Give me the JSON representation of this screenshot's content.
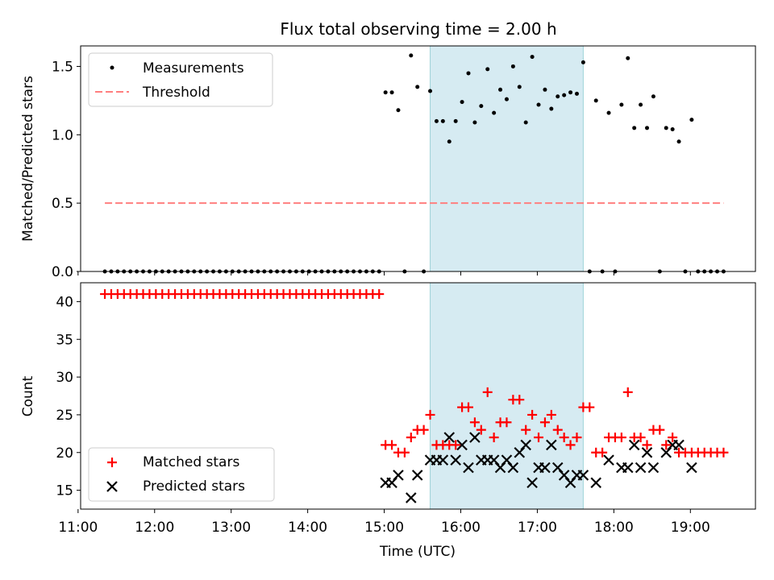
{
  "colors": {
    "measurement": "#000000",
    "threshold": "#ff7f7f",
    "matched": "#ff0000",
    "predicted": "#000000",
    "span": "#add8e6"
  },
  "chart_data": [
    {
      "type": "scatter",
      "title": "Flux total observing time = 2.00 h",
      "xlabel": "",
      "ylabel": "Matched/Predicted stars",
      "xlim": [
        "11:02",
        "19:51"
      ],
      "ylim": [
        0,
        1.65
      ],
      "yticks": [
        "0.0",
        "0.5",
        "1.0",
        "1.5"
      ],
      "highlight_span": [
        "15:36",
        "17:36"
      ],
      "legend": {
        "location": "upper left",
        "entries": [
          "Measurements",
          "Threshold"
        ]
      },
      "series": [
        {
          "name": "Measurements",
          "marker": "dot",
          "points": [
            [
              "11:21",
              0
            ],
            [
              "11:26",
              0
            ],
            [
              "11:31",
              0
            ],
            [
              "11:36",
              0
            ],
            [
              "11:41",
              0
            ],
            [
              "11:46",
              0
            ],
            [
              "11:51",
              0
            ],
            [
              "11:56",
              0
            ],
            [
              "12:01",
              0
            ],
            [
              "12:06",
              0
            ],
            [
              "12:11",
              0
            ],
            [
              "12:16",
              0
            ],
            [
              "12:21",
              0
            ],
            [
              "12:26",
              0
            ],
            [
              "12:31",
              0
            ],
            [
              "12:36",
              0
            ],
            [
              "12:41",
              0
            ],
            [
              "12:46",
              0
            ],
            [
              "12:51",
              0
            ],
            [
              "12:56",
              0
            ],
            [
              "13:01",
              0
            ],
            [
              "13:06",
              0
            ],
            [
              "13:11",
              0
            ],
            [
              "13:16",
              0
            ],
            [
              "13:21",
              0
            ],
            [
              "13:26",
              0
            ],
            [
              "13:31",
              0
            ],
            [
              "13:36",
              0
            ],
            [
              "13:41",
              0
            ],
            [
              "13:46",
              0
            ],
            [
              "13:51",
              0
            ],
            [
              "13:56",
              0
            ],
            [
              "14:01",
              0
            ],
            [
              "14:06",
              0
            ],
            [
              "14:11",
              0
            ],
            [
              "14:16",
              0
            ],
            [
              "14:21",
              0
            ],
            [
              "14:26",
              0
            ],
            [
              "14:31",
              0
            ],
            [
              "14:36",
              0
            ],
            [
              "14:41",
              0
            ],
            [
              "14:46",
              0
            ],
            [
              "14:51",
              0
            ],
            [
              "14:56",
              0
            ],
            [
              "15:01",
              1.31
            ],
            [
              "15:06",
              1.31
            ],
            [
              "15:11",
              1.18
            ],
            [
              "15:16",
              0
            ],
            [
              "15:21",
              1.58
            ],
            [
              "15:26",
              1.35
            ],
            [
              "15:31",
              0
            ],
            [
              "15:36",
              1.32
            ],
            [
              "15:41",
              1.1
            ],
            [
              "15:46",
              1.1
            ],
            [
              "15:51",
              0.95
            ],
            [
              "15:56",
              1.1
            ],
            [
              "16:01",
              1.24
            ],
            [
              "16:06",
              1.45
            ],
            [
              "16:11",
              1.09
            ],
            [
              "16:16",
              1.21
            ],
            [
              "16:21",
              1.48
            ],
            [
              "16:26",
              1.16
            ],
            [
              "16:31",
              1.33
            ],
            [
              "16:36",
              1.26
            ],
            [
              "16:41",
              1.5
            ],
            [
              "16:46",
              1.35
            ],
            [
              "16:51",
              1.09
            ],
            [
              "16:56",
              1.57
            ],
            [
              "17:01",
              1.22
            ],
            [
              "17:06",
              1.33
            ],
            [
              "17:11",
              1.19
            ],
            [
              "17:16",
              1.28
            ],
            [
              "17:21",
              1.29
            ],
            [
              "17:26",
              1.31
            ],
            [
              "17:31",
              1.3
            ],
            [
              "17:36",
              1.53
            ],
            [
              "17:41",
              0
            ],
            [
              "17:46",
              1.25
            ],
            [
              "17:51",
              0
            ],
            [
              "17:56",
              1.16
            ],
            [
              "18:01",
              0
            ],
            [
              "18:06",
              1.22
            ],
            [
              "18:11",
              1.56
            ],
            [
              "18:16",
              1.05
            ],
            [
              "18:21",
              1.22
            ],
            [
              "18:26",
              1.05
            ],
            [
              "18:31",
              1.28
            ],
            [
              "18:36",
              0
            ],
            [
              "18:41",
              1.05
            ],
            [
              "18:46",
              1.04
            ],
            [
              "18:51",
              0.95
            ],
            [
              "18:56",
              0
            ],
            [
              "19:01",
              1.11
            ],
            [
              "19:06",
              0
            ],
            [
              "19:11",
              0
            ],
            [
              "19:16",
              0
            ],
            [
              "19:21",
              0
            ],
            [
              "19:26",
              0
            ]
          ]
        },
        {
          "name": "Threshold",
          "marker": "dashed-line",
          "points": [
            [
              "11:21",
              0.5
            ],
            [
              "19:26",
              0.5
            ]
          ]
        }
      ]
    },
    {
      "type": "scatter",
      "title": "",
      "xlabel": "Time (UTC)",
      "ylabel": "Count",
      "xlim": [
        "11:02",
        "19:51"
      ],
      "ylim": [
        12.5,
        42.5
      ],
      "yticks": [
        "15",
        "20",
        "25",
        "30",
        "35",
        "40"
      ],
      "xticks": [
        "11:00",
        "12:00",
        "13:00",
        "14:00",
        "15:00",
        "16:00",
        "17:00",
        "18:00",
        "19:00"
      ],
      "highlight_span": [
        "15:36",
        "17:36"
      ],
      "legend": {
        "location": "lower left",
        "entries": [
          "Matched stars",
          "Predicted stars"
        ]
      },
      "series": [
        {
          "name": "Matched stars",
          "marker": "plus",
          "points": [
            [
              "11:21",
              41
            ],
            [
              "11:26",
              41
            ],
            [
              "11:31",
              41
            ],
            [
              "11:36",
              41
            ],
            [
              "11:41",
              41
            ],
            [
              "11:46",
              41
            ],
            [
              "11:51",
              41
            ],
            [
              "11:56",
              41
            ],
            [
              "12:01",
              41
            ],
            [
              "12:06",
              41
            ],
            [
              "12:11",
              41
            ],
            [
              "12:16",
              41
            ],
            [
              "12:21",
              41
            ],
            [
              "12:26",
              41
            ],
            [
              "12:31",
              41
            ],
            [
              "12:36",
              41
            ],
            [
              "12:41",
              41
            ],
            [
              "12:46",
              41
            ],
            [
              "12:51",
              41
            ],
            [
              "12:56",
              41
            ],
            [
              "13:01",
              41
            ],
            [
              "13:06",
              41
            ],
            [
              "13:11",
              41
            ],
            [
              "13:16",
              41
            ],
            [
              "13:21",
              41
            ],
            [
              "13:26",
              41
            ],
            [
              "13:31",
              41
            ],
            [
              "13:36",
              41
            ],
            [
              "13:41",
              41
            ],
            [
              "13:46",
              41
            ],
            [
              "13:51",
              41
            ],
            [
              "13:56",
              41
            ],
            [
              "14:01",
              41
            ],
            [
              "14:06",
              41
            ],
            [
              "14:11",
              41
            ],
            [
              "14:16",
              41
            ],
            [
              "14:21",
              41
            ],
            [
              "14:26",
              41
            ],
            [
              "14:31",
              41
            ],
            [
              "14:36",
              41
            ],
            [
              "14:41",
              41
            ],
            [
              "14:46",
              41
            ],
            [
              "14:51",
              41
            ],
            [
              "14:56",
              41
            ],
            [
              "15:01",
              21
            ],
            [
              "15:06",
              21
            ],
            [
              "15:11",
              20
            ],
            [
              "15:16",
              20
            ],
            [
              "15:21",
              22
            ],
            [
              "15:26",
              23
            ],
            [
              "15:31",
              23
            ],
            [
              "15:36",
              25
            ],
            [
              "15:41",
              21
            ],
            [
              "15:46",
              21
            ],
            [
              "15:51",
              21
            ],
            [
              "15:56",
              21
            ],
            [
              "16:01",
              26
            ],
            [
              "16:06",
              26
            ],
            [
              "16:11",
              24
            ],
            [
              "16:16",
              23
            ],
            [
              "16:21",
              28
            ],
            [
              "16:26",
              22
            ],
            [
              "16:31",
              24
            ],
            [
              "16:36",
              24
            ],
            [
              "16:41",
              27
            ],
            [
              "16:46",
              27
            ],
            [
              "16:51",
              23
            ],
            [
              "16:56",
              25
            ],
            [
              "17:01",
              22
            ],
            [
              "17:06",
              24
            ],
            [
              "17:11",
              25
            ],
            [
              "17:16",
              23
            ],
            [
              "17:21",
              22
            ],
            [
              "17:26",
              21
            ],
            [
              "17:31",
              22
            ],
            [
              "17:36",
              26
            ],
            [
              "17:41",
              26
            ],
            [
              "17:46",
              20
            ],
            [
              "17:51",
              20
            ],
            [
              "17:56",
              22
            ],
            [
              "18:01",
              22
            ],
            [
              "18:06",
              22
            ],
            [
              "18:11",
              28
            ],
            [
              "18:16",
              22
            ],
            [
              "18:21",
              22
            ],
            [
              "18:26",
              21
            ],
            [
              "18:31",
              23
            ],
            [
              "18:36",
              23
            ],
            [
              "18:41",
              21
            ],
            [
              "18:46",
              22
            ],
            [
              "18:51",
              20
            ],
            [
              "18:56",
              20
            ],
            [
              "19:01",
              20
            ],
            [
              "19:06",
              20
            ],
            [
              "19:11",
              20
            ],
            [
              "19:16",
              20
            ],
            [
              "19:21",
              20
            ],
            [
              "19:26",
              20
            ]
          ]
        },
        {
          "name": "Predicted stars",
          "marker": "x",
          "points": [
            [
              "15:01",
              16
            ],
            [
              "15:06",
              16
            ],
            [
              "15:11",
              17
            ],
            [
              "15:21",
              14
            ],
            [
              "15:26",
              17
            ],
            [
              "15:36",
              19
            ],
            [
              "15:41",
              19
            ],
            [
              "15:46",
              19
            ],
            [
              "15:51",
              22
            ],
            [
              "15:56",
              19
            ],
            [
              "16:01",
              21
            ],
            [
              "16:06",
              18
            ],
            [
              "16:11",
              22
            ],
            [
              "16:16",
              19
            ],
            [
              "16:21",
              19
            ],
            [
              "16:26",
              19
            ],
            [
              "16:31",
              18
            ],
            [
              "16:36",
              19
            ],
            [
              "16:41",
              18
            ],
            [
              "16:46",
              20
            ],
            [
              "16:51",
              21
            ],
            [
              "16:56",
              16
            ],
            [
              "17:01",
              18
            ],
            [
              "17:06",
              18
            ],
            [
              "17:11",
              21
            ],
            [
              "17:16",
              18
            ],
            [
              "17:21",
              17
            ],
            [
              "17:26",
              16
            ],
            [
              "17:31",
              17
            ],
            [
              "17:36",
              17
            ],
            [
              "17:46",
              16
            ],
            [
              "17:56",
              19
            ],
            [
              "18:06",
              18
            ],
            [
              "18:11",
              18
            ],
            [
              "18:16",
              21
            ],
            [
              "18:21",
              18
            ],
            [
              "18:26",
              20
            ],
            [
              "18:31",
              18
            ],
            [
              "18:41",
              20
            ],
            [
              "18:46",
              21
            ],
            [
              "18:51",
              21
            ],
            [
              "19:01",
              18
            ]
          ]
        }
      ]
    }
  ]
}
